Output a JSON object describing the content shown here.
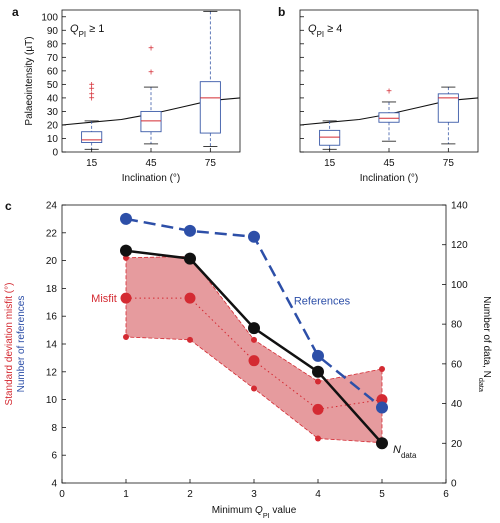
{
  "chart_data": [
    {
      "type": "box",
      "panel": "a",
      "annotation": "Q",
      "annotation_sub": "PI",
      "annotation_rest": " ≥ 1",
      "xlabel": "Inclination (°)",
      "ylabel": "Palaeointensity (µT)",
      "categories": [
        "15",
        "45",
        "75"
      ],
      "ylim": [
        0,
        105
      ],
      "yticks": [
        "0",
        "10",
        "20",
        "30",
        "40",
        "50",
        "60",
        "70",
        "80",
        "90",
        "100"
      ],
      "boxes": [
        {
          "x": "15",
          "whisker_low": 2,
          "q1": 7,
          "median": 9,
          "q3": 15,
          "whisker_high": 23
        },
        {
          "x": "45",
          "whisker_low": 6,
          "q1": 15,
          "median": 23,
          "q3": 30,
          "whisker_high": 48
        },
        {
          "x": "75",
          "whisker_low": 4,
          "q1": 14,
          "median": 40,
          "q3": 52,
          "whisker_high": 104
        }
      ],
      "outliers": [
        {
          "x": "15",
          "y": 50
        },
        {
          "x": "15",
          "y": 47
        },
        {
          "x": "15",
          "y": 43
        },
        {
          "x": "15",
          "y": 40
        },
        {
          "x": "45",
          "y": 77
        },
        {
          "x": "45",
          "y": 59
        }
      ],
      "dipole_curve": {
        "x": [
          0,
          15,
          30,
          45,
          60,
          75,
          90
        ],
        "y": [
          20,
          22,
          24,
          28,
          33,
          38,
          40
        ]
      }
    },
    {
      "type": "box",
      "panel": "b",
      "annotation": "Q",
      "annotation_sub": "PI",
      "annotation_rest": " ≥ 4",
      "xlabel": "Inclination (°)",
      "categories": [
        "15",
        "45",
        "75"
      ],
      "ylim": [
        0,
        105
      ],
      "boxes": [
        {
          "x": "15",
          "whisker_low": 2,
          "q1": 5,
          "median": 11,
          "q3": 16,
          "whisker_high": 23
        },
        {
          "x": "45",
          "whisker_low": 8,
          "q1": 22,
          "median": 25,
          "q3": 29,
          "whisker_high": 37
        },
        {
          "x": "75",
          "whisker_low": 6,
          "q1": 22,
          "median": 40,
          "q3": 43,
          "whisker_high": 48
        }
      ],
      "outliers": [
        {
          "x": "45",
          "y": 45
        }
      ],
      "dipole_curve": {
        "x": [
          0,
          15,
          30,
          45,
          60,
          75,
          90
        ],
        "y": [
          20,
          22,
          24,
          28,
          33,
          38,
          40
        ]
      }
    },
    {
      "type": "line",
      "panel": "c",
      "xlabel": "Minimum Q",
      "xlabel_sub": "PI",
      "xlabel_rest": " value",
      "ylabel_left_1": "Standard deviation misfit (°)",
      "ylabel_left_2": "Number of references",
      "ylabel_right": "Number of data, N",
      "ylabel_right_sub": "data",
      "xlim": [
        0,
        6
      ],
      "ylim_left": [
        4,
        24
      ],
      "ylim_right": [
        0,
        140
      ],
      "xticks": [
        "0",
        "1",
        "2",
        "3",
        "4",
        "5",
        "6"
      ],
      "yticks_left": [
        "4",
        "6",
        "8",
        "10",
        "12",
        "14",
        "16",
        "18",
        "20",
        "22",
        "24"
      ],
      "yticks_right": [
        "0",
        "20",
        "40",
        "60",
        "80",
        "100",
        "120",
        "140"
      ],
      "series": [
        {
          "name": "Misfit",
          "axis": "left",
          "x": [
            1,
            2,
            3,
            4,
            5
          ],
          "y": [
            17.3,
            17.3,
            12.8,
            9.3,
            10.0
          ]
        },
        {
          "name": "References",
          "axis": "right",
          "x": [
            1,
            2,
            3,
            4,
            5
          ],
          "y": [
            133,
            127,
            124,
            64,
            38
          ]
        },
        {
          "name": "N",
          "name_sub": "data",
          "axis": "right",
          "x": [
            1,
            2,
            3,
            4,
            5
          ],
          "y": [
            117,
            113,
            78,
            56,
            20
          ]
        }
      ],
      "misfit_band": {
        "x": [
          1,
          2,
          3,
          4,
          5
        ],
        "upper": [
          20.2,
          20.3,
          14.3,
          11.3,
          12.2
        ],
        "lower": [
          14.5,
          14.3,
          10.8,
          7.2,
          6.9
        ]
      },
      "colors": {
        "misfit": "#d42a32",
        "band": "#e39094",
        "references": "#2d4fa8",
        "ndata": "#111111"
      }
    }
  ]
}
